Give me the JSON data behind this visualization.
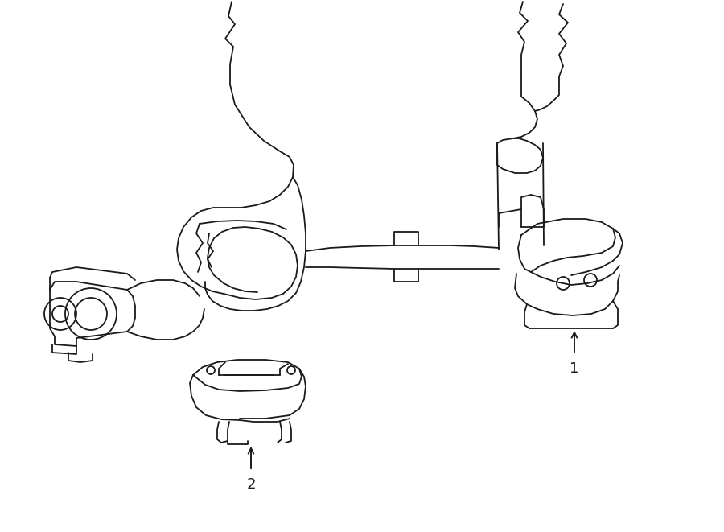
{
  "bg_color": "#ffffff",
  "line_color": "#1a1a1a",
  "line_width": 1.3,
  "fig_width": 9.0,
  "fig_height": 6.61,
  "dpi": 100,
  "label1_text": "1",
  "label2_text": "2",
  "fontsize_labels": 13
}
